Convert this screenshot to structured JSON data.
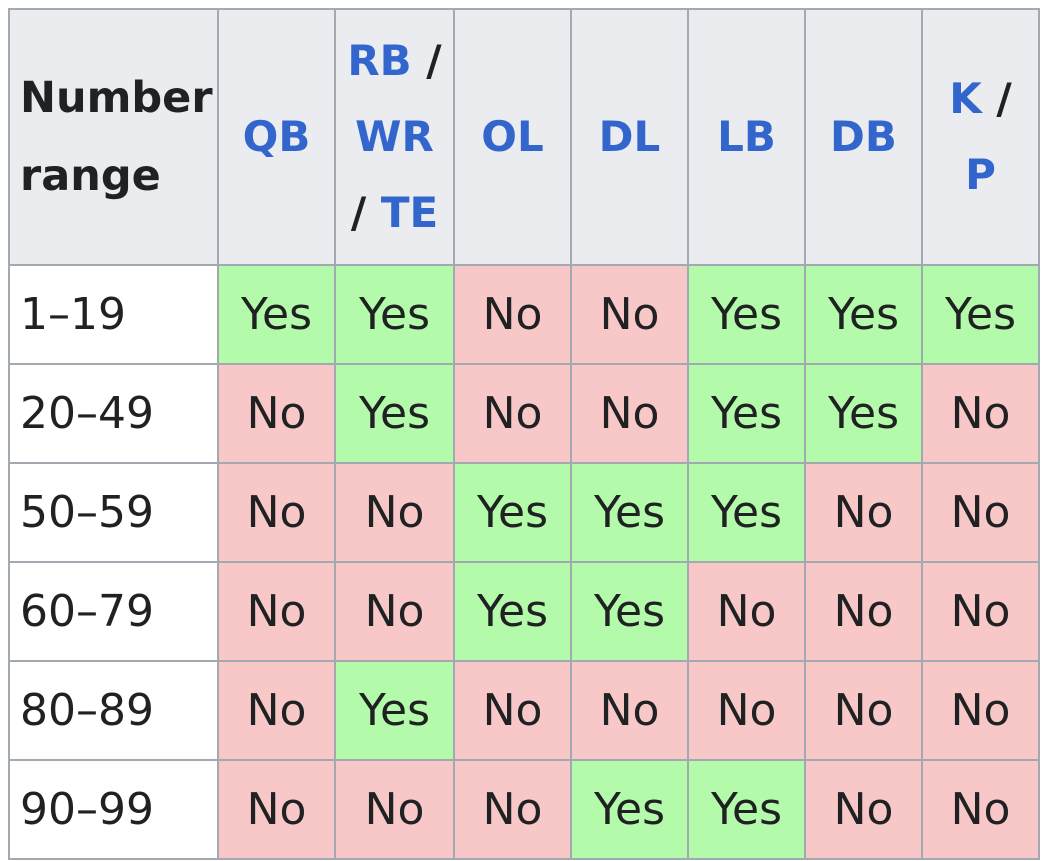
{
  "table": {
    "corner_header": [
      "Number",
      "range"
    ],
    "position_headers": [
      {
        "lines": [
          [
            {
              "t": "QB",
              "link": true
            }
          ]
        ]
      },
      {
        "lines": [
          [
            {
              "t": "RB",
              "link": true
            },
            {
              "t": " /",
              "link": false
            }
          ],
          [
            {
              "t": "WR",
              "link": true
            }
          ],
          [
            {
              "t": "/ ",
              "link": false
            },
            {
              "t": "TE",
              "link": true
            }
          ]
        ]
      },
      {
        "lines": [
          [
            {
              "t": "OL",
              "link": true
            }
          ]
        ]
      },
      {
        "lines": [
          [
            {
              "t": "DL",
              "link": true
            }
          ]
        ]
      },
      {
        "lines": [
          [
            {
              "t": "LB",
              "link": true
            }
          ]
        ]
      },
      {
        "lines": [
          [
            {
              "t": "DB",
              "link": true
            }
          ]
        ]
      },
      {
        "lines": [
          [
            {
              "t": "K",
              "link": true
            },
            {
              "t": " /",
              "link": false
            }
          ],
          [
            {
              "t": "P",
              "link": true
            }
          ]
        ]
      }
    ],
    "rows": [
      {
        "range": "1–19",
        "values": [
          "Yes",
          "Yes",
          "No",
          "No",
          "Yes",
          "Yes",
          "Yes"
        ]
      },
      {
        "range": "20–49",
        "values": [
          "No",
          "Yes",
          "No",
          "No",
          "Yes",
          "Yes",
          "No"
        ]
      },
      {
        "range": "50–59",
        "values": [
          "No",
          "No",
          "Yes",
          "Yes",
          "Yes",
          "No",
          "No"
        ]
      },
      {
        "range": "60–79",
        "values": [
          "No",
          "No",
          "Yes",
          "Yes",
          "No",
          "No",
          "No"
        ]
      },
      {
        "range": "80–89",
        "values": [
          "No",
          "Yes",
          "No",
          "No",
          "No",
          "No",
          "No"
        ]
      },
      {
        "range": "90–99",
        "values": [
          "No",
          "No",
          "No",
          "Yes",
          "Yes",
          "No",
          "No"
        ]
      }
    ],
    "colors": {
      "yes": "#b3fbaa",
      "no": "#f8c8c8",
      "header_bg": "#eaecf0",
      "link": "#3366cc",
      "border": "#a2a9b1"
    }
  }
}
